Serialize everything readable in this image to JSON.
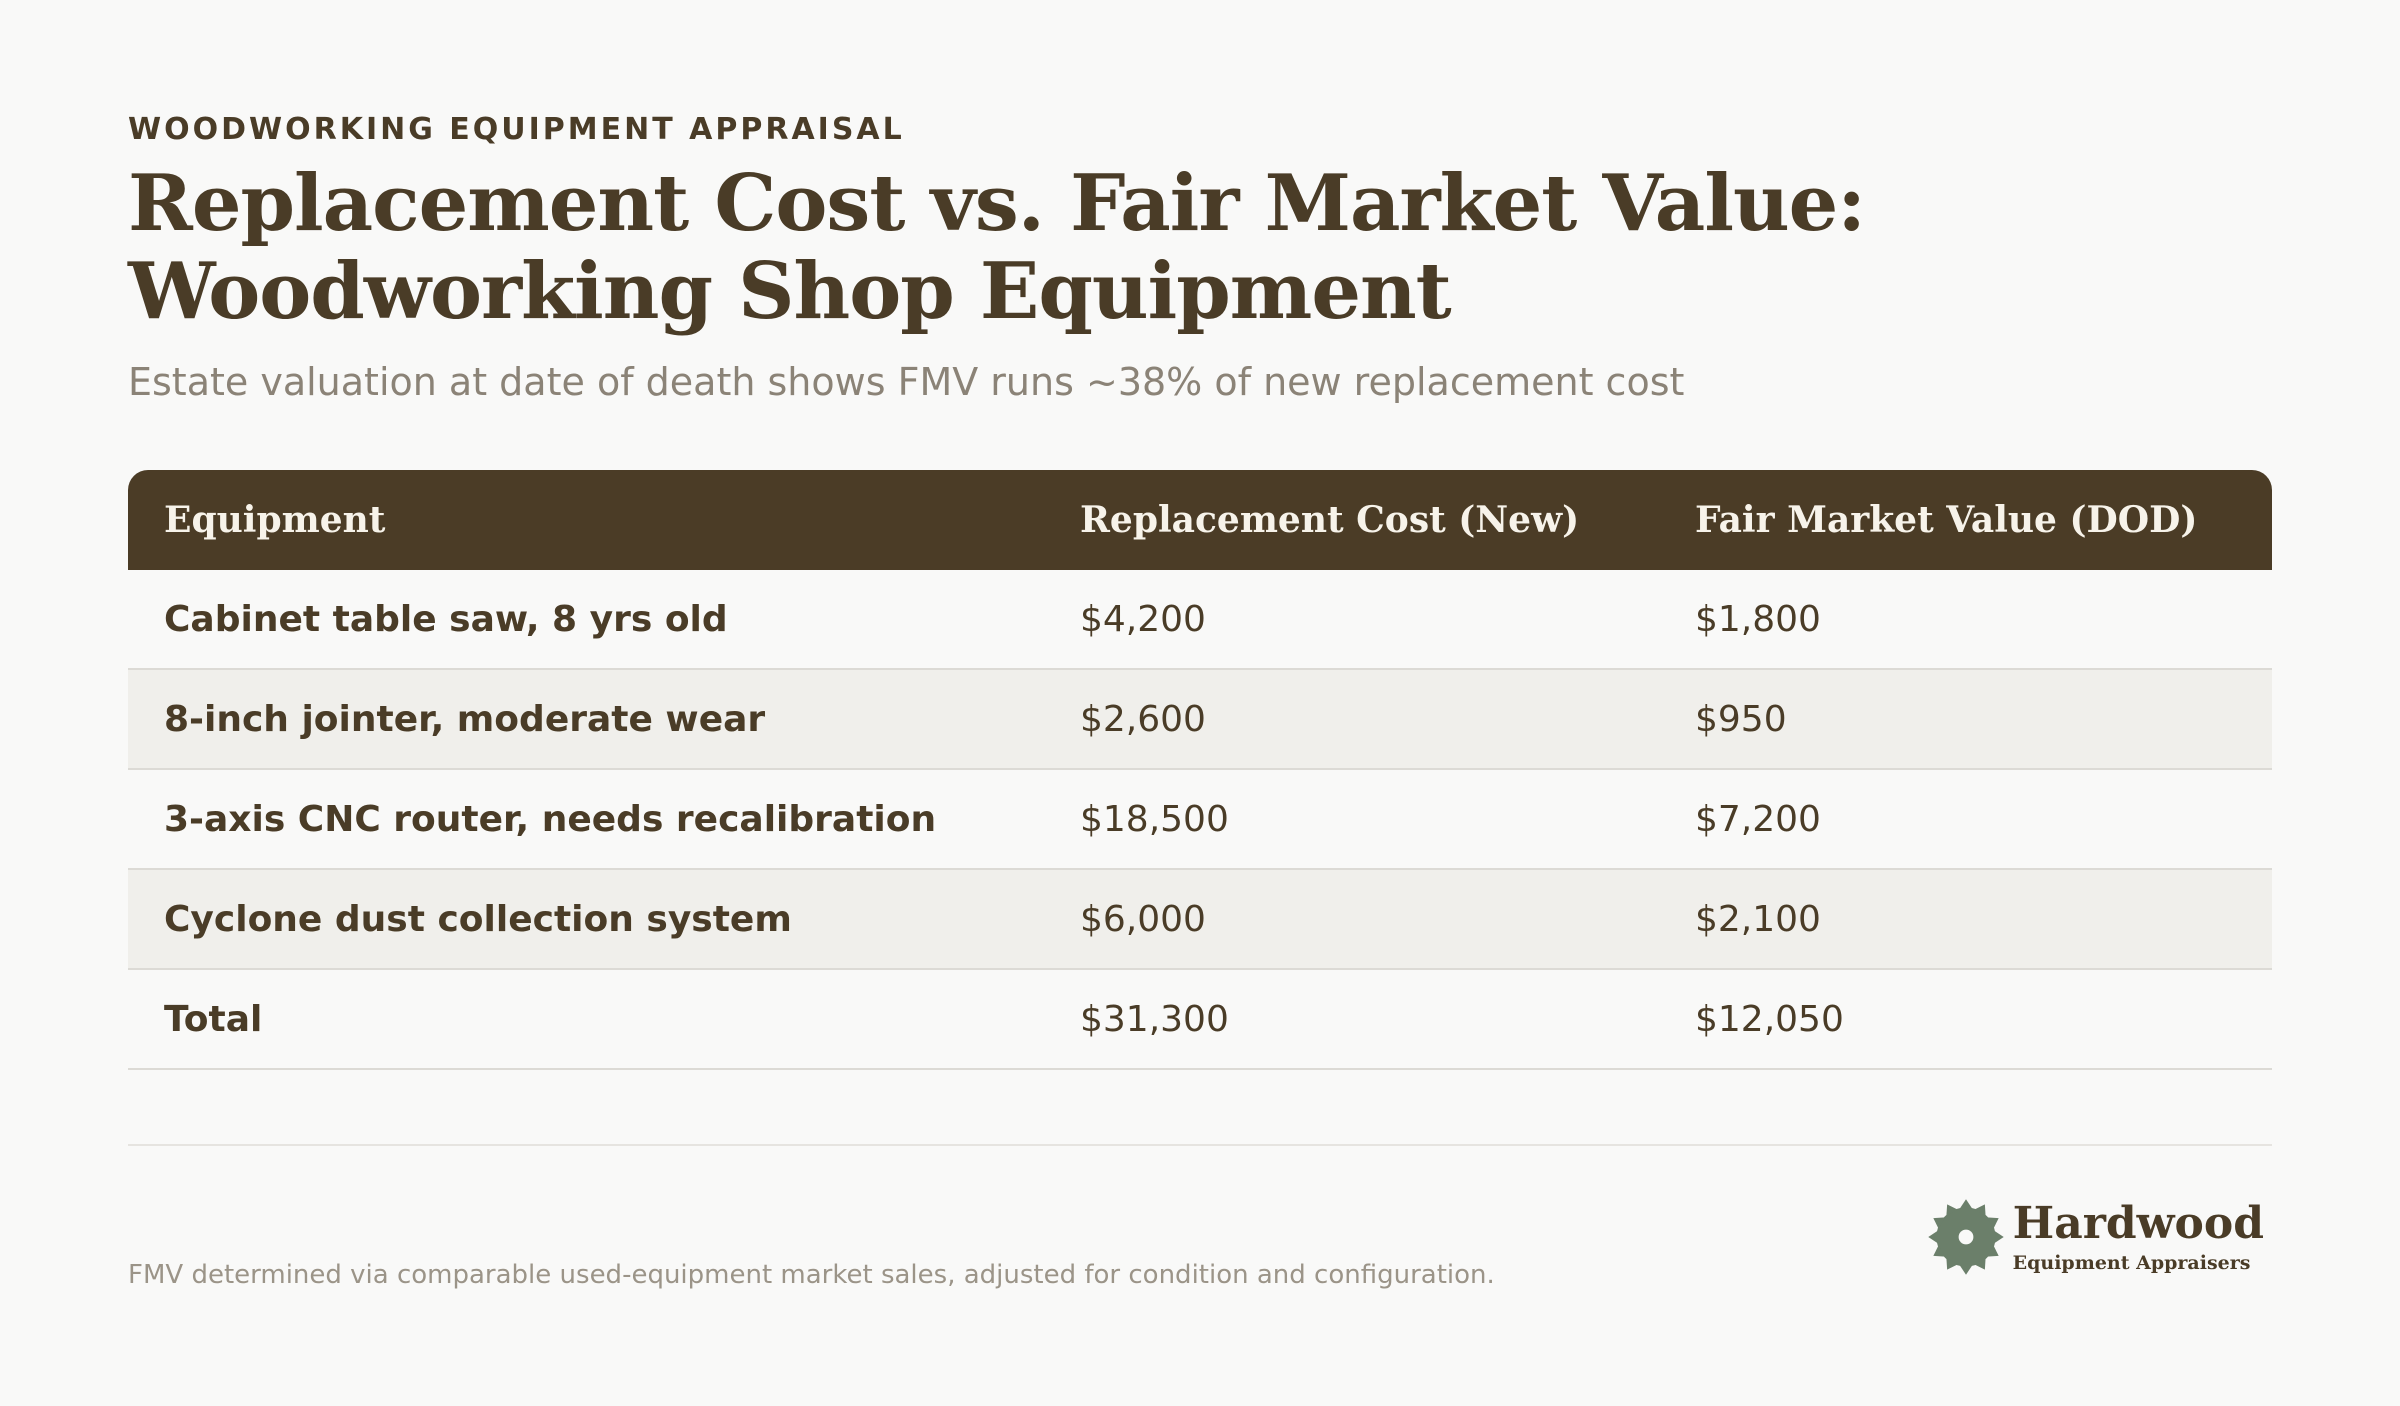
{
  "eyebrow": "WOODWORKING EQUIPMENT APPRAISAL",
  "title": "Replacement Cost vs. Fair Market Value: Woodworking Shop Equipment",
  "subtitle": "Estate valuation at date of death shows FMV runs ~38% of new replacement cost",
  "table": {
    "headers": [
      "Equipment",
      "Replacement Cost (New)",
      "Fair Market Value (DOD)"
    ],
    "rows": [
      [
        "Cabinet table saw, 8 yrs old",
        "$4,200",
        "$1,800"
      ],
      [
        "8-inch jointer, moderate wear",
        "$2,600",
        "$950"
      ],
      [
        "3-axis CNC router, needs recalibration",
        "$18,500",
        "$7,200"
      ],
      [
        "Cyclone dust collection system",
        "$6,000",
        "$2,100"
      ],
      [
        "Total",
        "$31,300",
        "$12,050"
      ]
    ]
  },
  "footnote": "FMV determined via comparable used-equipment market sales, adjusted for condition and configuration.",
  "logo": {
    "name": "Hardwood",
    "tagline": "Equipment Appraisers",
    "icon": "saw-blade-icon",
    "icon_color": "#6b7f6a"
  },
  "colors": {
    "header_bg": "#4b3c26",
    "text": "#4a3c27",
    "alt_row": "#f0efeb",
    "background": "#f9f9f8"
  }
}
